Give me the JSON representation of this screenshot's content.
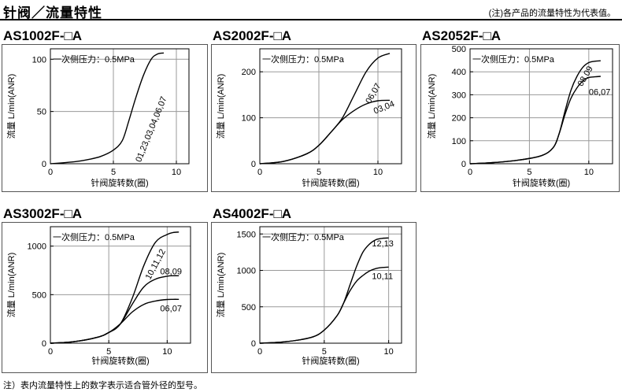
{
  "page": {
    "title": "针阀／流量特性",
    "note_top": "(注)各产品的流量特性为代表值。",
    "note_bottom": "注）表内流量特性上的数字表示适合管外径的型号。"
  },
  "chart_data": [
    {
      "title": "AS1002F-□A",
      "type": "line",
      "annotation": "一次侧压力：0.5MPa",
      "xlabel": "针阀旋转数(圈)",
      "ylabel": "流量 L/min(ANR)",
      "xlim": [
        0,
        11
      ],
      "ylim": [
        0,
        110
      ],
      "xticks": [
        0,
        5,
        10
      ],
      "yticks": [
        0,
        50,
        100
      ],
      "grid": true,
      "series": [
        {
          "name": "01,23,03,04,06,07",
          "x": [
            0,
            2,
            3,
            4,
            5,
            5.7,
            6.2,
            6.8,
            7.4,
            8,
            8.5,
            9
          ],
          "y": [
            0,
            2,
            4,
            7,
            13,
            22,
            40,
            64,
            85,
            100,
            105,
            106
          ]
        }
      ]
    },
    {
      "title": "AS2002F-□A",
      "type": "line",
      "annotation": "一次侧压力：0.5MPa",
      "xlabel": "针阀旋转数(圈)",
      "ylabel": "流量 L/min(ANR)",
      "xlim": [
        0,
        12
      ],
      "ylim": [
        0,
        250
      ],
      "xticks": [
        0,
        5,
        10
      ],
      "yticks": [
        0,
        100,
        200
      ],
      "grid": true,
      "series": [
        {
          "name": "06,07",
          "x": [
            0,
            2,
            4,
            5,
            6,
            7,
            8,
            9,
            10,
            11
          ],
          "y": [
            0,
            5,
            22,
            40,
            68,
            100,
            150,
            200,
            230,
            240
          ]
        },
        {
          "name": "03,04",
          "x": [
            0,
            2,
            4,
            5,
            6,
            7,
            8,
            9,
            10,
            11
          ],
          "y": [
            0,
            5,
            22,
            40,
            68,
            96,
            116,
            130,
            137,
            138
          ]
        }
      ]
    },
    {
      "title": "AS2052F-□A",
      "type": "line",
      "annotation": "一次侧压力：0.5MPa",
      "xlabel": "针阀旋转数(圈)",
      "ylabel": "流量 L/min(ANR)",
      "xlim": [
        0,
        12
      ],
      "ylim": [
        0,
        500
      ],
      "xticks": [
        0,
        5,
        10
      ],
      "yticks": [
        0,
        100,
        200,
        300,
        400,
        500
      ],
      "grid": true,
      "series": [
        {
          "name": "08,09",
          "x": [
            0,
            2,
            4,
            6,
            7,
            7.5,
            8,
            8.5,
            9,
            9.5,
            10,
            10.5,
            11
          ],
          "y": [
            0,
            5,
            15,
            35,
            70,
            130,
            230,
            320,
            380,
            420,
            440,
            446,
            448
          ]
        },
        {
          "name": "06,07",
          "x": [
            0,
            2,
            4,
            6,
            7,
            7.5,
            8,
            8.5,
            9,
            9.5,
            10,
            10.5,
            11
          ],
          "y": [
            0,
            5,
            15,
            35,
            70,
            130,
            215,
            285,
            330,
            360,
            375,
            378,
            380
          ]
        }
      ]
    },
    {
      "title": "AS3002F-□A",
      "type": "line",
      "annotation": "一次侧压力：0.5MPa",
      "xlabel": "针阀旋转数(圈)",
      "ylabel": "流量 L/min(ANR)",
      "xlim": [
        0,
        12
      ],
      "ylim": [
        0,
        1200
      ],
      "xticks": [
        0,
        5,
        10
      ],
      "yticks": [
        0,
        500,
        1000
      ],
      "grid": true,
      "series": [
        {
          "name": "10,11,12",
          "x": [
            0,
            2,
            4,
            5,
            6,
            7,
            8,
            9,
            10,
            10.5,
            11
          ],
          "y": [
            0,
            15,
            60,
            110,
            200,
            460,
            800,
            1040,
            1120,
            1140,
            1145
          ]
        },
        {
          "name": "08,09",
          "x": [
            0,
            2,
            4,
            5,
            6,
            7,
            8,
            9,
            10,
            10.5,
            11
          ],
          "y": [
            0,
            15,
            60,
            110,
            200,
            400,
            580,
            660,
            690,
            695,
            695
          ]
        },
        {
          "name": "06,07",
          "x": [
            0,
            2,
            4,
            5,
            6,
            7,
            8,
            9,
            10,
            10.5,
            11
          ],
          "y": [
            0,
            15,
            60,
            110,
            200,
            320,
            400,
            435,
            450,
            452,
            452
          ]
        }
      ]
    },
    {
      "title": "AS4002F-□A",
      "type": "line",
      "annotation": "一次侧压力：0.5MPa",
      "xlabel": "针阀旋转数(圈)",
      "ylabel": "流量 L/min(ANR)",
      "xlim": [
        0,
        11
      ],
      "ylim": [
        0,
        1600
      ],
      "xticks": [
        0,
        5,
        10
      ],
      "yticks": [
        0,
        500,
        1000,
        1500
      ],
      "grid": true,
      "series": [
        {
          "name": "12,13",
          "x": [
            0,
            2,
            4,
            5,
            6,
            6.5,
            7,
            7.5,
            8,
            8.5,
            9,
            9.5,
            10
          ],
          "y": [
            0,
            20,
            80,
            180,
            380,
            550,
            800,
            1050,
            1250,
            1360,
            1420,
            1440,
            1445
          ]
        },
        {
          "name": "10,11",
          "x": [
            0,
            2,
            4,
            5,
            6,
            6.5,
            7,
            7.5,
            8,
            8.5,
            9,
            9.5,
            10
          ],
          "y": [
            0,
            20,
            80,
            180,
            380,
            550,
            720,
            850,
            930,
            990,
            1025,
            1040,
            1045
          ]
        }
      ]
    }
  ]
}
